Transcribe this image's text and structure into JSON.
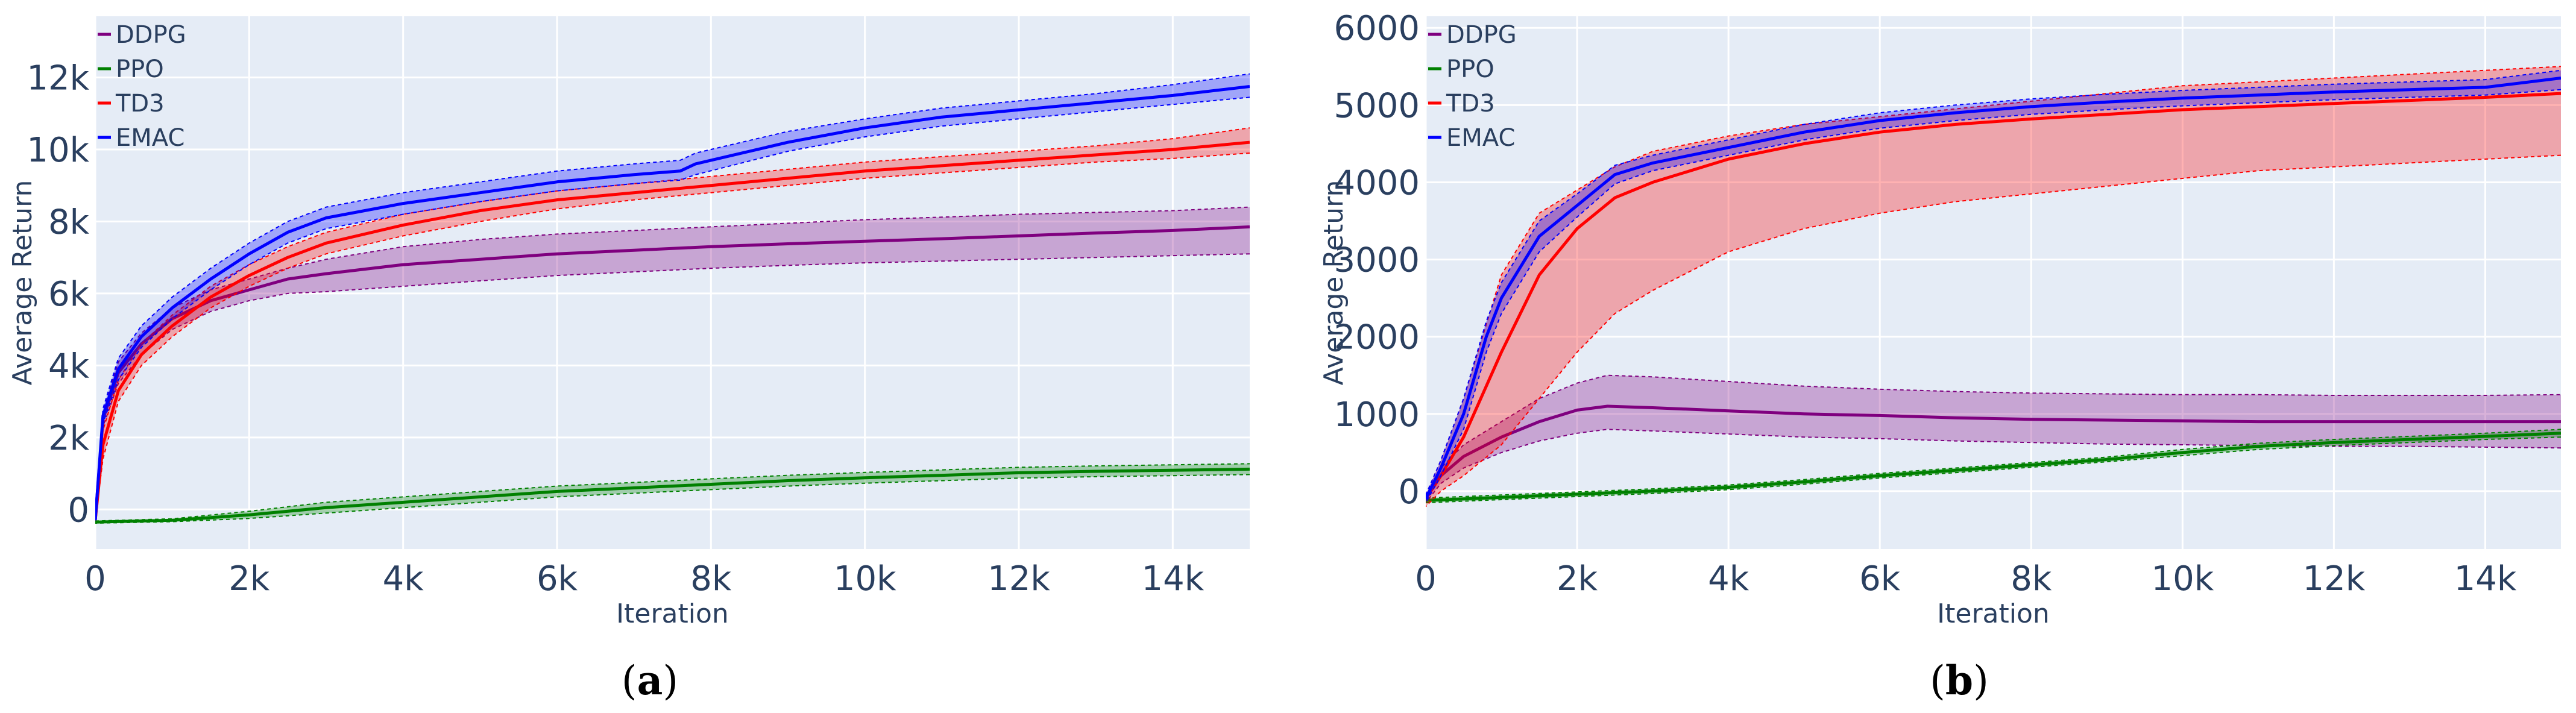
{
  "chart_data": [
    {
      "type": "line",
      "caption": "(a)",
      "xlabel": "Iteration",
      "ylabel": "Average Return",
      "xlim": [
        0,
        15000
      ],
      "ylim": [
        -1100,
        13700
      ],
      "x_ticks": [
        0,
        2000,
        4000,
        6000,
        8000,
        10000,
        12000,
        14000
      ],
      "x_tick_labels": [
        "0",
        "2k",
        "4k",
        "6k",
        "8k",
        "10k",
        "12k",
        "14k"
      ],
      "y_ticks": [
        0,
        2000,
        4000,
        6000,
        8000,
        10000,
        12000
      ],
      "y_tick_labels": [
        "0",
        "2k",
        "4k",
        "6k",
        "8k",
        "10k",
        "12k"
      ],
      "grid": true,
      "legend": "top-left",
      "series": [
        {
          "name": "DDPG",
          "color": "#7f007f",
          "fill": "rgba(128,0,128,0.3)",
          "x": [
            0,
            100,
            300,
            600,
            1000,
            1500,
            2000,
            2500,
            3000,
            4000,
            5000,
            6000,
            7000,
            8000,
            9000,
            10000,
            11000,
            12000,
            13000,
            14000,
            15000
          ],
          "y": [
            -300,
            2500,
            3800,
            4600,
            5300,
            5800,
            6100,
            6400,
            6550,
            6800,
            6950,
            7100,
            7200,
            7300,
            7380,
            7450,
            7520,
            7600,
            7680,
            7750,
            7850
          ],
          "lower": [
            -300,
            2300,
            3500,
            4300,
            5000,
            5500,
            5800,
            6000,
            6050,
            6200,
            6350,
            6500,
            6600,
            6700,
            6780,
            6850,
            6900,
            6950,
            7000,
            7050,
            7100
          ],
          "upper": [
            -300,
            2700,
            4100,
            4900,
            5600,
            6100,
            6400,
            6700,
            6950,
            7300,
            7500,
            7650,
            7750,
            7850,
            7950,
            8050,
            8120,
            8200,
            8250,
            8300,
            8400
          ]
        },
        {
          "name": "PPO",
          "color": "#008000",
          "fill": "rgba(0,128,0,0.3)",
          "x": [
            0,
            1000,
            2000,
            3000,
            4000,
            5000,
            6000,
            7000,
            8000,
            9000,
            10000,
            11000,
            12000,
            13000,
            14000,
            15000
          ],
          "y": [
            -350,
            -300,
            -150,
            50,
            200,
            350,
            500,
            600,
            700,
            800,
            880,
            950,
            1020,
            1060,
            1090,
            1120
          ],
          "lower": [
            -380,
            -340,
            -250,
            -100,
            50,
            200,
            350,
            450,
            550,
            650,
            730,
            800,
            870,
            910,
            940,
            970
          ],
          "upper": [
            -320,
            -260,
            -50,
            200,
            350,
            500,
            650,
            750,
            850,
            950,
            1030,
            1100,
            1170,
            1210,
            1240,
            1270
          ]
        },
        {
          "name": "TD3",
          "color": "#ff0000",
          "fill": "rgba(255,0,0,0.3)",
          "x": [
            0,
            100,
            300,
            600,
            1000,
            1500,
            2000,
            2500,
            3000,
            4000,
            5000,
            6000,
            7000,
            8000,
            9000,
            10000,
            11000,
            12000,
            13000,
            14000,
            15000
          ],
          "y": [
            -300,
            1800,
            3300,
            4300,
            5100,
            5900,
            6500,
            7000,
            7400,
            7900,
            8300,
            8600,
            8800,
            9000,
            9200,
            9400,
            9550,
            9700,
            9850,
            10000,
            10200
          ],
          "lower": [
            -300,
            1400,
            3000,
            4000,
            4800,
            5600,
            6200,
            6700,
            7100,
            7600,
            8000,
            8350,
            8600,
            8800,
            9000,
            9200,
            9350,
            9500,
            9650,
            9750,
            9900
          ],
          "upper": [
            -300,
            2200,
            3600,
            4600,
            5400,
            6200,
            6800,
            7300,
            7700,
            8200,
            8550,
            8850,
            9050,
            9250,
            9450,
            9650,
            9800,
            9950,
            10100,
            10300,
            10600
          ]
        },
        {
          "name": "EMAC",
          "color": "#0000ff",
          "fill": "rgba(0,0,255,0.3)",
          "x": [
            0,
            100,
            300,
            600,
            1000,
            1500,
            2000,
            2500,
            3000,
            4000,
            5000,
            6000,
            7000,
            7600,
            7800,
            9000,
            10000,
            11000,
            12000,
            13000,
            14000,
            15000
          ],
          "y": [
            -300,
            2600,
            3900,
            4800,
            5600,
            6400,
            7100,
            7700,
            8100,
            8500,
            8800,
            9100,
            9300,
            9400,
            9600,
            10200,
            10600,
            10900,
            11100,
            11300,
            11500,
            11750
          ],
          "lower": [
            -300,
            2400,
            3600,
            4500,
            5300,
            6100,
            6800,
            7400,
            7800,
            8200,
            8550,
            8850,
            9050,
            9150,
            9300,
            9950,
            10350,
            10650,
            10850,
            11050,
            11250,
            11450
          ],
          "upper": [
            -300,
            2800,
            4200,
            5100,
            5900,
            6700,
            7400,
            8000,
            8400,
            8800,
            9100,
            9400,
            9600,
            9700,
            9900,
            10500,
            10850,
            11150,
            11350,
            11550,
            11800,
            12100
          ]
        }
      ]
    },
    {
      "type": "line",
      "caption": "(b)",
      "xlabel": "Iteration",
      "ylabel": "Average Return",
      "xlim": [
        0,
        15000
      ],
      "ylim": [
        -750,
        6150
      ],
      "x_ticks": [
        0,
        2000,
        4000,
        6000,
        8000,
        10000,
        12000,
        14000
      ],
      "x_tick_labels": [
        "0",
        "2k",
        "4k",
        "6k",
        "8k",
        "10k",
        "12k",
        "14k"
      ],
      "y_ticks": [
        0,
        1000,
        2000,
        3000,
        4000,
        5000,
        6000
      ],
      "y_tick_labels": [
        "0",
        "1000",
        "2000",
        "3000",
        "4000",
        "5000",
        "6000"
      ],
      "grid": true,
      "legend": "top-left",
      "series": [
        {
          "name": "DDPG",
          "color": "#7f007f",
          "fill": "rgba(128,0,128,0.3)",
          "x": [
            0,
            200,
            500,
            1000,
            1500,
            2000,
            2400,
            3000,
            4000,
            5000,
            6000,
            7000,
            8000,
            9000,
            10000,
            11000,
            12000,
            13000,
            14000,
            15000
          ],
          "y": [
            -100,
            200,
            450,
            700,
            900,
            1050,
            1100,
            1080,
            1040,
            1000,
            980,
            950,
            930,
            920,
            910,
            900,
            900,
            900,
            900,
            900
          ],
          "lower": [
            -150,
            100,
            300,
            500,
            650,
            750,
            800,
            780,
            740,
            700,
            680,
            650,
            630,
            610,
            600,
            590,
            580,
            580,
            570,
            560
          ],
          "upper": [
            -50,
            300,
            600,
            900,
            1200,
            1400,
            1500,
            1480,
            1420,
            1360,
            1320,
            1290,
            1270,
            1260,
            1250,
            1250,
            1240,
            1240,
            1240,
            1250
          ]
        },
        {
          "name": "PPO",
          "color": "#008000",
          "fill": "rgba(0,128,0,0.3)",
          "x": [
            0,
            1000,
            2000,
            3000,
            4000,
            5000,
            6000,
            7000,
            8000,
            9000,
            10000,
            11000,
            12000,
            13000,
            14000,
            15000
          ],
          "y": [
            -120,
            -80,
            -40,
            0,
            50,
            120,
            200,
            270,
            340,
            410,
            500,
            580,
            630,
            670,
            710,
            750
          ],
          "lower": [
            -150,
            -110,
            -70,
            -30,
            20,
            90,
            170,
            240,
            310,
            380,
            460,
            540,
            590,
            630,
            670,
            700
          ],
          "upper": [
            -90,
            -50,
            -10,
            30,
            80,
            150,
            230,
            300,
            370,
            440,
            540,
            620,
            670,
            710,
            750,
            800
          ]
        },
        {
          "name": "TD3",
          "color": "#ff0000",
          "fill": "rgba(255,0,0,0.3)",
          "x": [
            0,
            200,
            500,
            1000,
            1500,
            2000,
            2500,
            3000,
            4000,
            5000,
            6000,
            7000,
            8000,
            9000,
            10000,
            11000,
            12000,
            13000,
            14000,
            15000
          ],
          "y": [
            -100,
            200,
            700,
            1800,
            2800,
            3400,
            3800,
            4000,
            4300,
            4500,
            4650,
            4750,
            4820,
            4880,
            4940,
            4980,
            5020,
            5060,
            5100,
            5150
          ],
          "lower": [
            -200,
            0,
            200,
            600,
            1200,
            1800,
            2300,
            2600,
            3100,
            3400,
            3600,
            3750,
            3850,
            3950,
            4050,
            4150,
            4200,
            4250,
            4300,
            4350
          ],
          "upper": [
            -50,
            400,
            1200,
            2800,
            3600,
            3900,
            4200,
            4400,
            4600,
            4750,
            4850,
            4950,
            5050,
            5150,
            5250,
            5300,
            5350,
            5400,
            5450,
            5500
          ]
        },
        {
          "name": "EMAC",
          "color": "#0000ff",
          "fill": "rgba(0,0,255,0.3)",
          "x": [
            0,
            200,
            500,
            800,
            1000,
            1500,
            2000,
            2500,
            3000,
            4000,
            5000,
            6000,
            7000,
            8000,
            9000,
            10000,
            11000,
            12000,
            13000,
            14000,
            15000
          ],
          "y": [
            -100,
            300,
            1000,
            2000,
            2500,
            3300,
            3700,
            4100,
            4250,
            4450,
            4650,
            4800,
            4900,
            4980,
            5040,
            5090,
            5130,
            5170,
            5200,
            5230,
            5350
          ],
          "lower": [
            -150,
            200,
            800,
            1800,
            2300,
            3100,
            3550,
            3980,
            4150,
            4350,
            4550,
            4700,
            4800,
            4880,
            4940,
            4990,
            5030,
            5070,
            5100,
            5130,
            5200
          ],
          "upper": [
            -50,
            400,
            1200,
            2200,
            2700,
            3500,
            3850,
            4220,
            4350,
            4550,
            4750,
            4900,
            5000,
            5080,
            5140,
            5190,
            5230,
            5270,
            5300,
            5330,
            5450
          ]
        }
      ]
    }
  ]
}
